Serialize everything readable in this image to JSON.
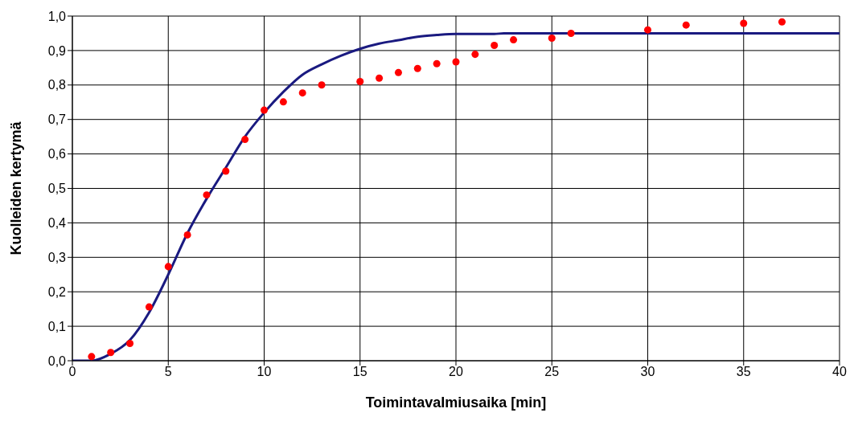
{
  "chart_data": {
    "type": "scatter",
    "xlabel": "Toimintavalmiusaika [min]",
    "ylabel": "Kuolleiden kertymä",
    "xlim": [
      0,
      40
    ],
    "xticks": [
      0,
      5,
      10,
      15,
      20,
      25,
      30,
      35,
      40
    ],
    "ylim": [
      0,
      1
    ],
    "yticks": [
      {
        "value": 0,
        "label": "0,0"
      },
      {
        "value": 0.1,
        "label": "0,1"
      },
      {
        "value": 0.2,
        "label": "0,2"
      },
      {
        "value": 0.3,
        "label": "0,3"
      },
      {
        "value": 0.4,
        "label": "0,4"
      },
      {
        "value": 0.5,
        "label": "0,5"
      },
      {
        "value": 0.6,
        "label": "0,6"
      },
      {
        "value": 0.7,
        "label": "0,7"
      },
      {
        "value": 0.8,
        "label": "0,8"
      },
      {
        "value": 0.9,
        "label": "0,9"
      },
      {
        "value": 1,
        "label": "1,0"
      }
    ],
    "grid": true,
    "series": [
      {
        "type": "line",
        "color": "#1a1a80",
        "marker": "none",
        "line_style": "solid",
        "x": [
          0,
          1,
          2,
          3,
          4,
          5,
          6,
          7,
          8,
          9,
          10,
          11,
          12,
          13,
          14,
          15,
          16,
          17,
          18,
          19,
          20,
          22,
          22.5,
          40
        ],
        "values": [
          0,
          0,
          0.02,
          0.06,
          0.14,
          0.25,
          0.37,
          0.47,
          0.56,
          0.65,
          0.72,
          0.78,
          0.83,
          0.86,
          0.885,
          0.905,
          0.92,
          0.93,
          0.94,
          0.945,
          0.948,
          0.948,
          0.95,
          0.95
        ]
      },
      {
        "color": "#ff0000",
        "marker": "circle",
        "x": [
          1,
          2,
          3,
          4,
          5,
          6,
          7,
          8,
          9,
          10,
          11,
          12,
          13,
          15,
          16,
          17,
          18,
          19,
          20,
          21,
          22,
          23,
          25,
          26,
          30,
          32,
          35,
          37
        ],
        "values": [
          0.012,
          0.024,
          0.05,
          0.156,
          0.273,
          0.365,
          0.481,
          0.55,
          0.642,
          0.727,
          0.751,
          0.777,
          0.8,
          0.81,
          0.82,
          0.836,
          0.848,
          0.862,
          0.867,
          0.889,
          0.915,
          0.931,
          0.936,
          0.95,
          0.96,
          0.974,
          0.979,
          0.983
        ]
      }
    ]
  }
}
